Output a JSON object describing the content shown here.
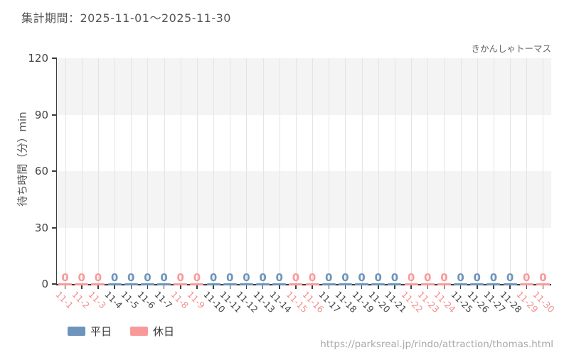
{
  "page": {
    "footer_url": "https://parksreal.jp/rindo/attraction/thomas.html"
  },
  "chart_data": {
    "type": "bar",
    "title": "集計期間：2025-11-01～2025-11-30",
    "series_label": "きかんしゃトーマス",
    "ylabel": "待ち時間（分）min",
    "ylim": [
      0,
      120
    ],
    "yticks": [
      0,
      30,
      60,
      90,
      120
    ],
    "grid": true,
    "legend_position": "bottom-left",
    "categories": [
      "11-1",
      "11-2",
      "11-3",
      "11-4",
      "11-5",
      "11-6",
      "11-7",
      "11-8",
      "11-9",
      "11-10",
      "11-11",
      "11-12",
      "11-13",
      "11-14",
      "11-15",
      "11-16",
      "11-17",
      "11-18",
      "11-19",
      "11-20",
      "11-21",
      "11-22",
      "11-23",
      "11-24",
      "11-25",
      "11-26",
      "11-27",
      "11-28",
      "11-29",
      "11-30"
    ],
    "values": [
      0,
      0,
      0,
      0,
      0,
      0,
      0,
      0,
      0,
      0,
      0,
      0,
      0,
      0,
      0,
      0,
      0,
      0,
      0,
      0,
      0,
      0,
      0,
      0,
      0,
      0,
      0,
      0,
      0,
      0
    ],
    "day_types": [
      "holiday",
      "holiday",
      "holiday",
      "weekday",
      "weekday",
      "weekday",
      "weekday",
      "holiday",
      "holiday",
      "weekday",
      "weekday",
      "weekday",
      "weekday",
      "weekday",
      "holiday",
      "holiday",
      "weekday",
      "weekday",
      "weekday",
      "weekday",
      "weekday",
      "holiday",
      "holiday",
      "holiday",
      "weekday",
      "weekday",
      "weekday",
      "weekday",
      "holiday",
      "holiday"
    ],
    "colors": {
      "weekday": "#6e94bb",
      "holiday": "#f99a9a",
      "weekday_label": "#444444",
      "holiday_label": "#f58f8f",
      "band_gray": "#f4f4f4",
      "grid": "#e4e4e4",
      "axis": "#3c3c3c"
    },
    "legend": [
      {
        "label": "平日",
        "type": "weekday",
        "color": "#6e94bb"
      },
      {
        "label": "休日",
        "type": "holiday",
        "color": "#f99a9a"
      }
    ]
  }
}
